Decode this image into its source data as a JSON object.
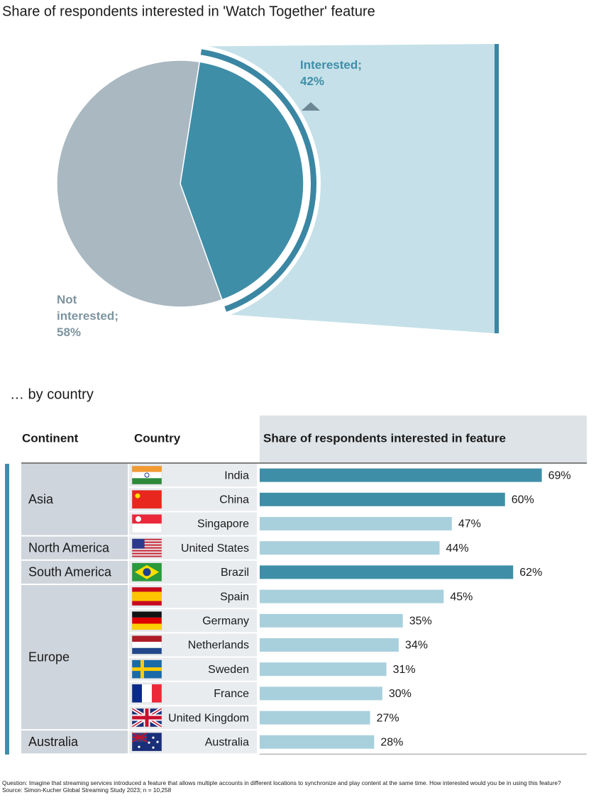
{
  "chart_data": [
    {
      "type": "pie",
      "title": "Share of respondents interested in 'Watch Together' feature",
      "categories": [
        "Interested;",
        "Not interested;"
      ],
      "values": [
        42,
        58
      ],
      "value_labels": [
        "42%",
        "58%"
      ],
      "colors": [
        "#3f8ea8",
        "#a9b8c1"
      ]
    },
    {
      "type": "bar",
      "orientation": "horizontal",
      "title": "… by country",
      "column_headers": [
        "Continent",
        "Country",
        "Share of respondents interested in feature"
      ],
      "continents": [
        "Asia",
        null,
        null,
        "North America",
        "South America",
        "Europe",
        null,
        null,
        null,
        null,
        null,
        "Australia"
      ],
      "categories": [
        "India",
        "China",
        "Singapore",
        "United States",
        "Brazil",
        "Spain",
        "Germany",
        "Netherlands",
        "Sweden",
        "France",
        "United Kingdom",
        "Australia"
      ],
      "values": [
        69,
        60,
        47,
        44,
        62,
        45,
        35,
        34,
        31,
        30,
        27,
        28
      ],
      "value_labels": [
        "69%",
        "60%",
        "47%",
        "44%",
        "62%",
        "45%",
        "35%",
        "34%",
        "31%",
        "30%",
        "27%",
        "28%"
      ],
      "colors": [
        "#3f8ea8",
        "#3f8ea8",
        "#a8d0dc",
        "#a8d0dc",
        "#3f8ea8",
        "#a8d0dc",
        "#a8d0dc",
        "#a8d0dc",
        "#a8d0dc",
        "#a8d0dc",
        "#a8d0dc",
        "#a8d0dc"
      ],
      "xlim": [
        0,
        80
      ]
    }
  ],
  "footnotes": [
    "Question: Imagine that streaming services introduced a feature that allows multiple accounts in different locations to synchronize and play content at the same time. How interested would you be in using this feature?",
    "Source: Simon-Kucher Global Streaming Study 2023; n = 10,258"
  ]
}
